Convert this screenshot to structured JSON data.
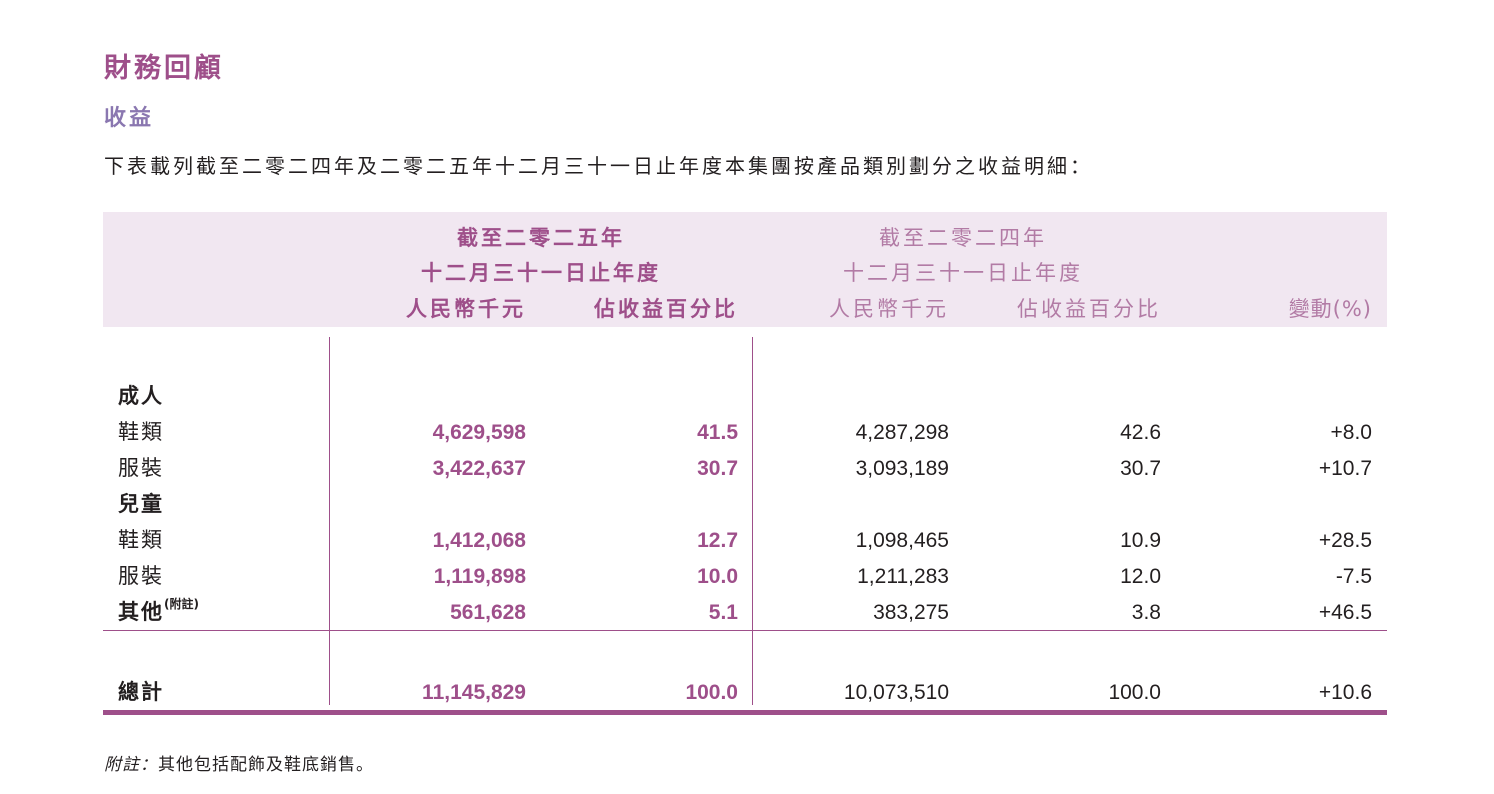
{
  "title": "財務回顧",
  "subtitle": "收益",
  "intro": "下表載列截至二零二四年及二零二五年十二月三十一日止年度本集團按產品類別劃分之收益明細：",
  "header": {
    "cur_year_line1": "截至二零二五年",
    "cur_year_line2": "十二月三十一日止年度",
    "prev_year_line1": "截至二零二四年",
    "prev_year_line2": "十二月三十一日止年度",
    "col_rmb_cur": "人民幣千元",
    "col_pct_cur": "佔收益百分比",
    "col_rmb_prev": "人民幣千元",
    "col_pct_prev": "佔收益百分比",
    "col_change": "變動(%)"
  },
  "sections": [
    {
      "label": "成人",
      "rows": [
        {
          "label": "鞋類",
          "rmb_2025": "4,629,598",
          "pct_2025": "41.5",
          "rmb_2024": "4,287,298",
          "pct_2024": "42.6",
          "change": "+8.0"
        },
        {
          "label": "服裝",
          "rmb_2025": "3,422,637",
          "pct_2025": "30.7",
          "rmb_2024": "3,093,189",
          "pct_2024": "30.7",
          "change": "+10.7"
        }
      ]
    },
    {
      "label": "兒童",
      "rows": [
        {
          "label": "鞋類",
          "rmb_2025": "1,412,068",
          "pct_2025": "12.7",
          "rmb_2024": "1,098,465",
          "pct_2024": "10.9",
          "change": "+28.5"
        },
        {
          "label": "服裝",
          "rmb_2025": "1,119,898",
          "pct_2025": "10.0",
          "rmb_2024": "1,211,283",
          "pct_2024": "12.0",
          "change": "-7.5"
        }
      ]
    }
  ],
  "other": {
    "label": "其他",
    "note_mark": "(附註)",
    "rmb_2025": "561,628",
    "pct_2025": "5.1",
    "rmb_2024": "383,275",
    "pct_2024": "3.8",
    "change": "+46.5"
  },
  "total": {
    "label": "總計",
    "rmb_2025": "11,145,829",
    "pct_2025": "100.0",
    "rmb_2024": "10,073,510",
    "pct_2024": "100.0",
    "change": "+10.6"
  },
  "note": {
    "label": "附註：",
    "text": "其他包括配飾及鞋底銷售。"
  },
  "colors": {
    "accent": "#9e4f8a",
    "subtitle": "#8a77b0",
    "header_band": "#f1e7f1",
    "prev_header": "#b27ba5"
  }
}
